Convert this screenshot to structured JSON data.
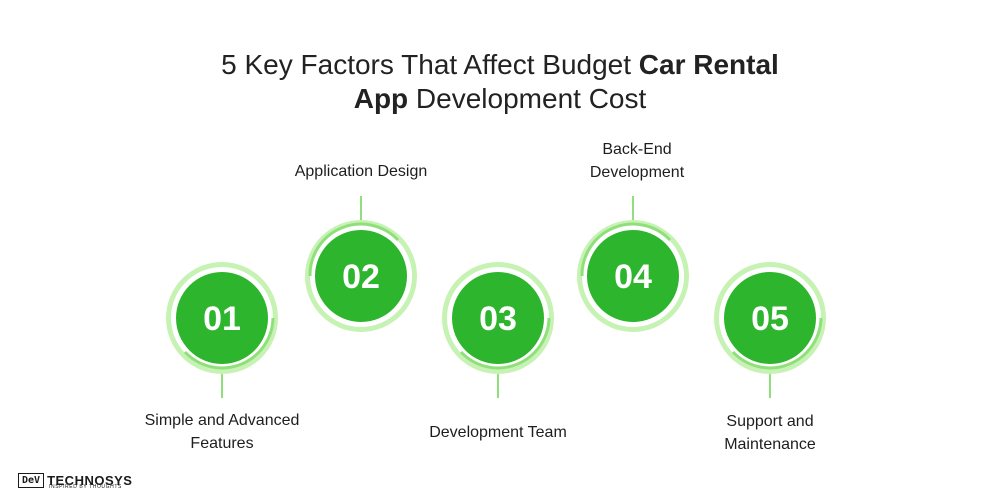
{
  "title": {
    "part1": "5 Key Factors That Affect Budget ",
    "bold1": "Car Rental",
    "bold2": "App",
    "part2": " Development Cost"
  },
  "steps": [
    {
      "number": "01",
      "label_line1": "Simple and Advanced",
      "label_line2": "Features"
    },
    {
      "number": "02",
      "label_line1": "Application Design",
      "label_line2": ""
    },
    {
      "number": "03",
      "label_line1": "Development Team",
      "label_line2": ""
    },
    {
      "number": "04",
      "label_line1": "Back-End",
      "label_line2": "Development"
    },
    {
      "number": "05",
      "label_line1": "Support and",
      "label_line2": "Maintenance"
    }
  ],
  "logo": {
    "box_text": "DeV",
    "word": "TECHNOSYS",
    "tagline": "INSPIRED BY THOUGHTS"
  },
  "colors": {
    "circle_fill": "#2db52d",
    "ring_light": "#c6f2b3",
    "ring_dark": "#8fe07a",
    "number": "#ffffff"
  }
}
